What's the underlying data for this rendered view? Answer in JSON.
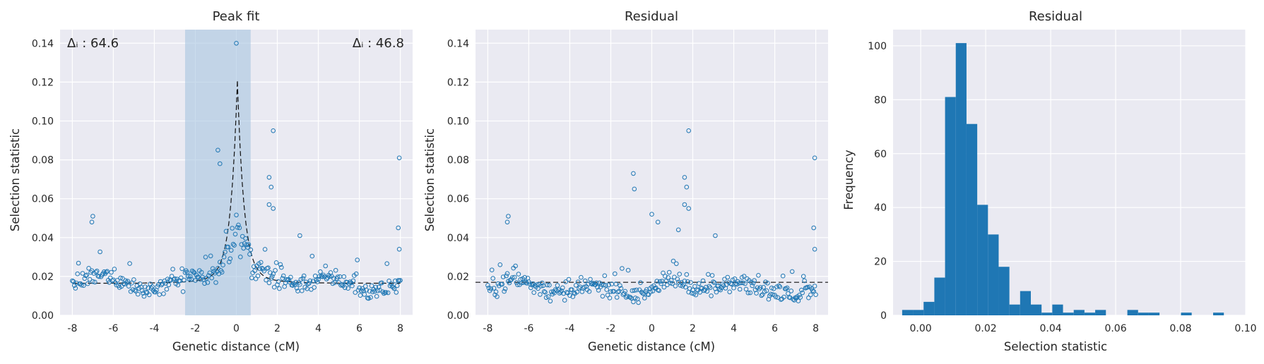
{
  "chart_data": [
    {
      "type": "scatter",
      "title": "Peak fit",
      "xlabel": "Genetic distance (cM)",
      "ylabel": "Selection statistic",
      "xlim": [
        -8.6,
        8.6
      ],
      "ylim": [
        0,
        0.147
      ],
      "xticks": [
        -8,
        -6,
        -4,
        -2,
        0,
        2,
        4,
        6,
        8
      ],
      "yticks": [
        0.0,
        0.02,
        0.04,
        0.06,
        0.08,
        0.1,
        0.12,
        0.14
      ],
      "grid": true,
      "highlight_span": [
        -2.5,
        0.7
      ],
      "annotations": [
        {
          "text": "Δᵢ : 64.6",
          "position": "top-left"
        },
        {
          "text": "Δᵢ : 46.8",
          "position": "top-right"
        }
      ],
      "fit_curve": {
        "style": "dashed",
        "baseline": 0.0165,
        "peak_x": 0.05,
        "peak_y": 0.115
      },
      "notable_points": [
        {
          "x": 0.0,
          "y": 0.14
        },
        {
          "x": 1.8,
          "y": 0.095
        },
        {
          "x": -0.9,
          "y": 0.085
        },
        {
          "x": 7.95,
          "y": 0.081
        },
        {
          "x": -0.8,
          "y": 0.078
        },
        {
          "x": 1.6,
          "y": 0.071
        },
        {
          "x": 1.7,
          "y": 0.066
        },
        {
          "x": 1.6,
          "y": 0.057
        },
        {
          "x": 1.8,
          "y": 0.055
        },
        {
          "x": -7.0,
          "y": 0.051
        },
        {
          "x": -7.05,
          "y": 0.048
        },
        {
          "x": 7.9,
          "y": 0.045
        },
        {
          "x": 3.1,
          "y": 0.041
        },
        {
          "x": 7.95,
          "y": 0.034
        }
      ]
    },
    {
      "type": "scatter",
      "title": "Residual",
      "xlabel": "Genetic distance (cM)",
      "ylabel": "Selection statistic",
      "xlim": [
        -8.6,
        8.6
      ],
      "ylim": [
        0,
        0.147
      ],
      "xticks": [
        -8,
        -6,
        -4,
        -2,
        0,
        2,
        4,
        6,
        8
      ],
      "yticks": [
        0.0,
        0.02,
        0.04,
        0.06,
        0.08,
        0.1,
        0.12,
        0.14
      ],
      "grid": true,
      "baseline": 0.017,
      "notable_points": [
        {
          "x": 1.8,
          "y": 0.095
        },
        {
          "x": 7.95,
          "y": 0.081
        },
        {
          "x": -0.9,
          "y": 0.073
        },
        {
          "x": 1.6,
          "y": 0.071
        },
        {
          "x": 1.7,
          "y": 0.066
        },
        {
          "x": -0.85,
          "y": 0.065
        },
        {
          "x": 1.6,
          "y": 0.057
        },
        {
          "x": 1.8,
          "y": 0.055
        },
        {
          "x": 0.0,
          "y": 0.052
        },
        {
          "x": -7.0,
          "y": 0.051
        },
        {
          "x": 0.3,
          "y": 0.048
        },
        {
          "x": -7.05,
          "y": 0.048
        },
        {
          "x": 7.9,
          "y": 0.045
        },
        {
          "x": 1.3,
          "y": 0.044
        },
        {
          "x": 3.1,
          "y": 0.041
        },
        {
          "x": 7.95,
          "y": 0.034
        }
      ]
    },
    {
      "type": "bar",
      "subtype": "histogram",
      "title": "Residual",
      "xlabel": "Selection statistic",
      "ylabel": "Frequency",
      "xlim": [
        -0.0085,
        0.1
      ],
      "ylim": [
        0,
        106
      ],
      "xticks": [
        0.0,
        0.02,
        0.04,
        0.06,
        0.08,
        0.1
      ],
      "yticks": [
        0,
        20,
        40,
        60,
        80,
        100
      ],
      "grid": true,
      "color": "#1f77b4",
      "bins": [
        {
          "x0": -0.0057,
          "x1": -0.0024,
          "count": 2
        },
        {
          "x0": -0.0024,
          "x1": 0.0009,
          "count": 2
        },
        {
          "x0": 0.0009,
          "x1": 0.0042,
          "count": 5
        },
        {
          "x0": 0.0042,
          "x1": 0.0075,
          "count": 14
        },
        {
          "x0": 0.0075,
          "x1": 0.0108,
          "count": 81
        },
        {
          "x0": 0.0108,
          "x1": 0.0141,
          "count": 101
        },
        {
          "x0": 0.0141,
          "x1": 0.0174,
          "count": 71
        },
        {
          "x0": 0.0174,
          "x1": 0.0207,
          "count": 41
        },
        {
          "x0": 0.0207,
          "x1": 0.024,
          "count": 30
        },
        {
          "x0": 0.024,
          "x1": 0.0273,
          "count": 18
        },
        {
          "x0": 0.0273,
          "x1": 0.0306,
          "count": 4
        },
        {
          "x0": 0.0306,
          "x1": 0.0339,
          "count": 9
        },
        {
          "x0": 0.0339,
          "x1": 0.0372,
          "count": 4
        },
        {
          "x0": 0.0372,
          "x1": 0.0405,
          "count": 1
        },
        {
          "x0": 0.0405,
          "x1": 0.0438,
          "count": 4
        },
        {
          "x0": 0.0438,
          "x1": 0.0471,
          "count": 1
        },
        {
          "x0": 0.0471,
          "x1": 0.0504,
          "count": 2
        },
        {
          "x0": 0.0504,
          "x1": 0.0537,
          "count": 1
        },
        {
          "x0": 0.0537,
          "x1": 0.057,
          "count": 2
        },
        {
          "x0": 0.057,
          "x1": 0.0603,
          "count": 0
        },
        {
          "x0": 0.0603,
          "x1": 0.0636,
          "count": 0
        },
        {
          "x0": 0.0636,
          "x1": 0.0669,
          "count": 2
        },
        {
          "x0": 0.0669,
          "x1": 0.0702,
          "count": 1
        },
        {
          "x0": 0.0702,
          "x1": 0.0735,
          "count": 1
        },
        {
          "x0": 0.0735,
          "x1": 0.0768,
          "count": 0
        },
        {
          "x0": 0.0768,
          "x1": 0.0801,
          "count": 0
        },
        {
          "x0": 0.0801,
          "x1": 0.0834,
          "count": 1
        },
        {
          "x0": 0.0834,
          "x1": 0.0867,
          "count": 0
        },
        {
          "x0": 0.0867,
          "x1": 0.09,
          "count": 0
        },
        {
          "x0": 0.09,
          "x1": 0.0933,
          "count": 1
        }
      ]
    }
  ],
  "style": {
    "axes_bg": "#eaeaf2",
    "grid": "#ffffff",
    "accent": "#1f77b4",
    "span_fill": "#a7c4df",
    "text": "#262626"
  }
}
